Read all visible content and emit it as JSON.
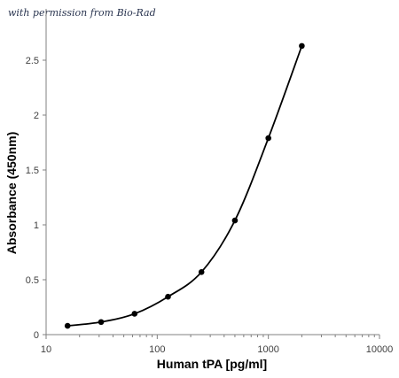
{
  "watermark": "with permission from Bio-Rad",
  "colors": {
    "axis": "#808080",
    "series": "#000000",
    "text": "#404040"
  },
  "chart_data": {
    "type": "scatter",
    "title": "",
    "xlabel": "Human tPA [pg/ml]",
    "ylabel": "Absorbance (450nm)",
    "x_scale": "log",
    "xlim": [
      10,
      10000
    ],
    "ylim": [
      0,
      3
    ],
    "x_ticks": [
      10,
      100,
      1000,
      10000
    ],
    "x_tick_labels": [
      "10",
      "100",
      "1000",
      "10000"
    ],
    "y_ticks": [
      0,
      0.5,
      1,
      1.5,
      2,
      2.5
    ],
    "y_tick_labels": [
      "0",
      "0.5",
      "1",
      "1.5",
      "2",
      "2.5"
    ],
    "grid": false,
    "legend": "none",
    "series": [
      {
        "x": [
          15.6,
          31.25,
          62.5,
          125,
          250,
          500,
          1000,
          2000
        ],
        "y": [
          0.08,
          0.115,
          0.19,
          0.345,
          0.57,
          1.04,
          1.79,
          2.63
        ],
        "line": "smooth",
        "marker": "circle"
      }
    ]
  }
}
